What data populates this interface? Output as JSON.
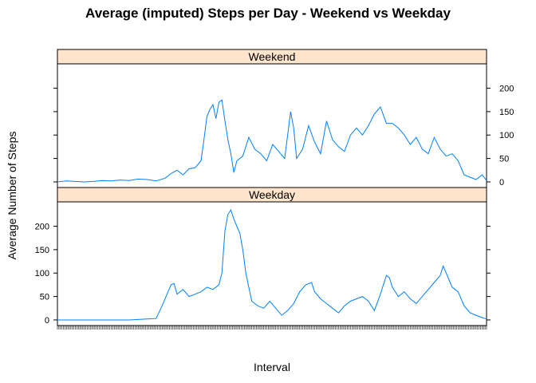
{
  "chart_data": {
    "type": "line",
    "layout": "lattice-2-panels-stacked",
    "title": "Average (imputed) Steps per Day - Weekend vs Weekday",
    "xlabel": "Interval",
    "ylabel": "Average Number of Steps",
    "ylim": [
      -12,
      252
    ],
    "yticks": [
      0,
      50,
      100,
      150,
      200
    ],
    "xlim": [
      0,
      287
    ],
    "line_color": "#0080ff",
    "strip_color": "#ffe5cc",
    "panels": [
      {
        "strip": "Weekend",
        "y_axis_side": "right",
        "points": [
          [
            0,
            0
          ],
          [
            6,
            2
          ],
          [
            12,
            1
          ],
          [
            18,
            0
          ],
          [
            24,
            1
          ],
          [
            30,
            3
          ],
          [
            36,
            2
          ],
          [
            42,
            4
          ],
          [
            48,
            3
          ],
          [
            54,
            6
          ],
          [
            60,
            5
          ],
          [
            66,
            2
          ],
          [
            72,
            8
          ],
          [
            76,
            18
          ],
          [
            80,
            25
          ],
          [
            84,
            15
          ],
          [
            88,
            28
          ],
          [
            92,
            30
          ],
          [
            96,
            45
          ],
          [
            98,
            90
          ],
          [
            100,
            140
          ],
          [
            102,
            155
          ],
          [
            104,
            165
          ],
          [
            106,
            135
          ],
          [
            108,
            170
          ],
          [
            110,
            175
          ],
          [
            112,
            130
          ],
          [
            114,
            90
          ],
          [
            116,
            60
          ],
          [
            118,
            20
          ],
          [
            120,
            45
          ],
          [
            124,
            55
          ],
          [
            128,
            95
          ],
          [
            132,
            70
          ],
          [
            136,
            60
          ],
          [
            140,
            45
          ],
          [
            144,
            80
          ],
          [
            148,
            65
          ],
          [
            152,
            50
          ],
          [
            156,
            150
          ],
          [
            158,
            115
          ],
          [
            160,
            50
          ],
          [
            164,
            70
          ],
          [
            168,
            120
          ],
          [
            172,
            85
          ],
          [
            176,
            60
          ],
          [
            180,
            130
          ],
          [
            184,
            90
          ],
          [
            188,
            75
          ],
          [
            192,
            65
          ],
          [
            196,
            100
          ],
          [
            200,
            115
          ],
          [
            204,
            100
          ],
          [
            208,
            120
          ],
          [
            212,
            145
          ],
          [
            216,
            160
          ],
          [
            220,
            125
          ],
          [
            224,
            125
          ],
          [
            228,
            115
          ],
          [
            232,
            100
          ],
          [
            236,
            80
          ],
          [
            240,
            95
          ],
          [
            244,
            70
          ],
          [
            248,
            60
          ],
          [
            252,
            95
          ],
          [
            256,
            70
          ],
          [
            260,
            55
          ],
          [
            264,
            60
          ],
          [
            268,
            45
          ],
          [
            272,
            15
          ],
          [
            276,
            10
          ],
          [
            280,
            5
          ],
          [
            284,
            15
          ],
          [
            287,
            3
          ]
        ]
      },
      {
        "strip": "Weekday",
        "y_axis_side": "left",
        "points": [
          [
            0,
            0
          ],
          [
            12,
            0
          ],
          [
            24,
            0
          ],
          [
            36,
            0
          ],
          [
            48,
            0
          ],
          [
            60,
            2
          ],
          [
            66,
            3
          ],
          [
            70,
            30
          ],
          [
            74,
            60
          ],
          [
            76,
            75
          ],
          [
            78,
            78
          ],
          [
            80,
            55
          ],
          [
            84,
            65
          ],
          [
            88,
            50
          ],
          [
            92,
            55
          ],
          [
            96,
            60
          ],
          [
            100,
            70
          ],
          [
            104,
            65
          ],
          [
            108,
            75
          ],
          [
            110,
            100
          ],
          [
            112,
            190
          ],
          [
            114,
            225
          ],
          [
            116,
            235
          ],
          [
            118,
            215
          ],
          [
            120,
            200
          ],
          [
            122,
            185
          ],
          [
            124,
            150
          ],
          [
            126,
            100
          ],
          [
            128,
            70
          ],
          [
            130,
            40
          ],
          [
            134,
            30
          ],
          [
            138,
            25
          ],
          [
            142,
            40
          ],
          [
            146,
            25
          ],
          [
            150,
            10
          ],
          [
            154,
            20
          ],
          [
            158,
            35
          ],
          [
            162,
            60
          ],
          [
            166,
            75
          ],
          [
            170,
            80
          ],
          [
            172,
            60
          ],
          [
            176,
            45
          ],
          [
            180,
            35
          ],
          [
            184,
            25
          ],
          [
            188,
            15
          ],
          [
            192,
            30
          ],
          [
            196,
            40
          ],
          [
            200,
            45
          ],
          [
            204,
            50
          ],
          [
            208,
            40
          ],
          [
            212,
            20
          ],
          [
            216,
            55
          ],
          [
            220,
            95
          ],
          [
            222,
            90
          ],
          [
            224,
            70
          ],
          [
            228,
            50
          ],
          [
            232,
            60
          ],
          [
            236,
            45
          ],
          [
            240,
            35
          ],
          [
            244,
            50
          ],
          [
            248,
            65
          ],
          [
            252,
            80
          ],
          [
            256,
            95
          ],
          [
            258,
            115
          ],
          [
            260,
            100
          ],
          [
            262,
            85
          ],
          [
            264,
            70
          ],
          [
            268,
            60
          ],
          [
            272,
            30
          ],
          [
            276,
            15
          ],
          [
            280,
            10
          ],
          [
            284,
            5
          ],
          [
            287,
            2
          ]
        ]
      }
    ]
  }
}
